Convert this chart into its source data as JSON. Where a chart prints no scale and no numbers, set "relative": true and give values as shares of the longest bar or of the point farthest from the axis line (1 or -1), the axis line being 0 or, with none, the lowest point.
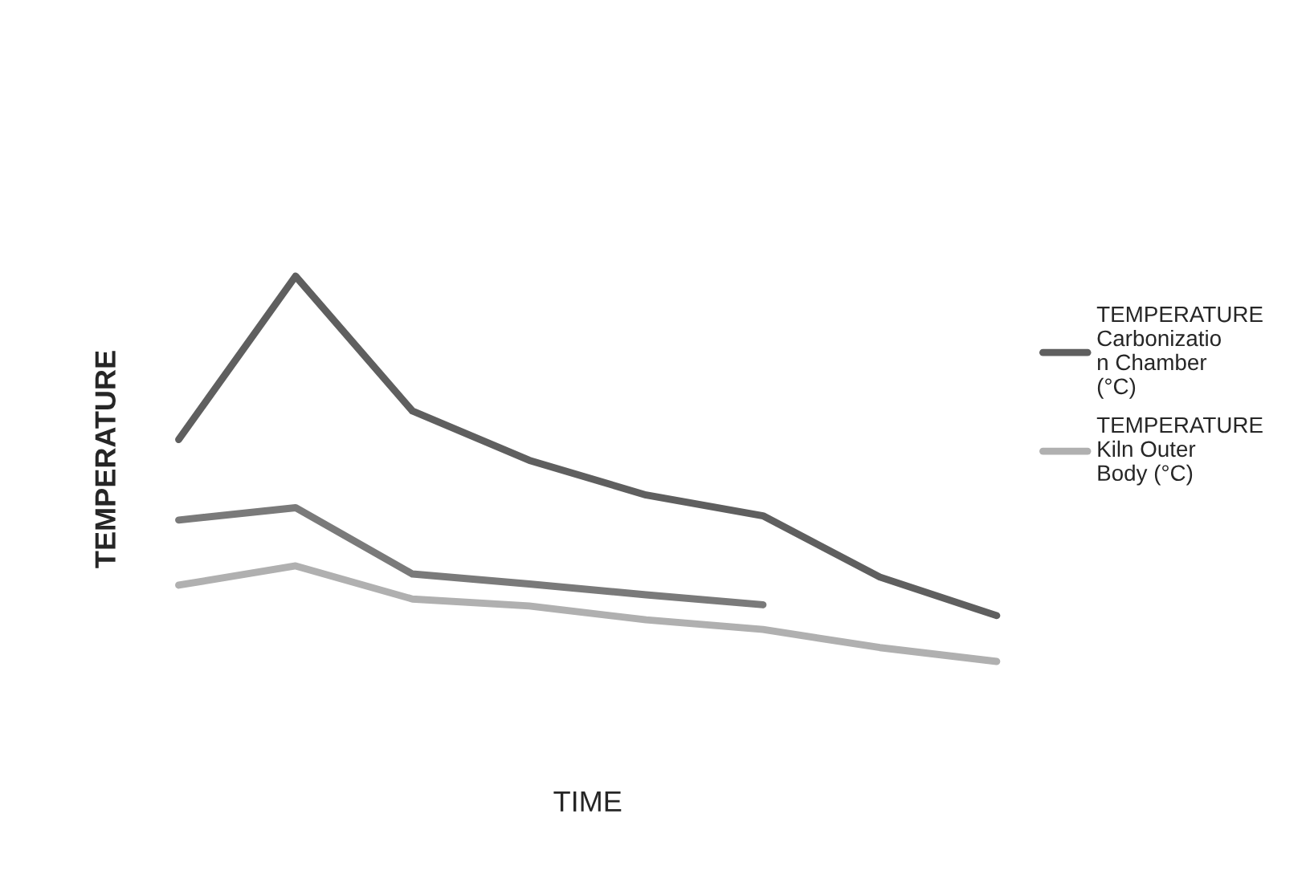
{
  "chart_data": {
    "type": "line",
    "relative": true,
    "xlabel": "TIME",
    "ylabel": "TEMPERATURE",
    "categories": [
      null,
      null,
      null,
      null,
      null,
      null,
      null,
      null
    ],
    "series": [
      {
        "name": "TEMPERATURE Carbonization Chamber (°C)",
        "color": "#5f5f5f",
        "values": [
          0.576,
          1.0,
          0.65,
          0.522,
          0.432,
          0.378,
          0.219,
          0.119
        ]
      },
      {
        "color": "#7a7a7a",
        "values": [
          0.367,
          0.399,
          0.227,
          0.201,
          0.173,
          0.147,
          null,
          null
        ]
      },
      {
        "name": "TEMPERATURE Kiln Outer Body (°C)",
        "color": "#b0b0b0",
        "values": [
          0.198,
          0.248,
          0.162,
          0.144,
          0.108,
          0.083,
          0.036,
          0.0
        ]
      }
    ],
    "legend": "right",
    "tick_labels": false,
    "grid": false
  }
}
